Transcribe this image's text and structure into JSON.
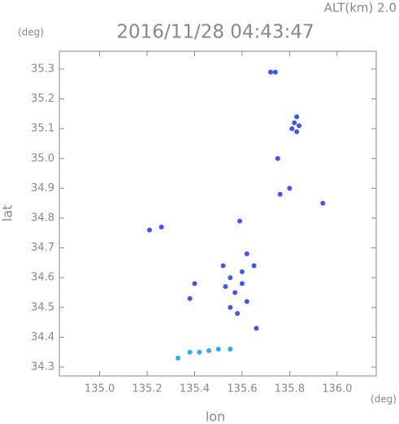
{
  "chart_data": {
    "type": "scatter",
    "corner_label": "ALT(km) 2.0",
    "title": "2016/11/28 04:43:47",
    "y_unit": "(deg)",
    "x_unit": "(deg)",
    "xlabel": "lon",
    "ylabel": "lat",
    "xlim": [
      134.83,
      136.165
    ],
    "ylim": [
      34.27,
      35.36
    ],
    "xticks": [
      {
        "value": 135,
        "label": "135.0"
      },
      135.2,
      135.4,
      135.6,
      135.8,
      {
        "value": 136,
        "label": "136.0"
      }
    ],
    "yticks": [
      34.3,
      34.4,
      34.5,
      34.6,
      34.7,
      34.8,
      34.9,
      {
        "value": 35,
        "label": "35.0"
      },
      35.1,
      35.2,
      35.3
    ],
    "series": [
      {
        "color": "#4455ee",
        "x": [
          135.72,
          135.74,
          135.82,
          135.83,
          135.81,
          135.84,
          135.83,
          135.75,
          135.76,
          135.8,
          135.94,
          135.59,
          135.21,
          135.26,
          135.62,
          135.52,
          135.55,
          135.57,
          135.55,
          135.6,
          135.58,
          135.62,
          135.53,
          135.65,
          135.6,
          135.4,
          135.38,
          135.66
        ],
        "y": [
          35.29,
          35.29,
          35.12,
          35.14,
          35.1,
          35.11,
          35.09,
          35.0,
          34.88,
          34.9,
          34.85,
          34.79,
          34.76,
          34.77,
          34.68,
          34.64,
          34.6,
          34.55,
          34.5,
          34.58,
          34.48,
          34.52,
          34.57,
          34.64,
          34.62,
          34.58,
          34.53,
          34.43
        ]
      },
      {
        "color": "#33aaee",
        "x": [
          135.38,
          135.42,
          135.46,
          135.5,
          135.55,
          135.33
        ],
        "y": [
          34.35,
          34.35,
          34.355,
          34.36,
          34.36,
          34.33
        ]
      }
    ]
  }
}
